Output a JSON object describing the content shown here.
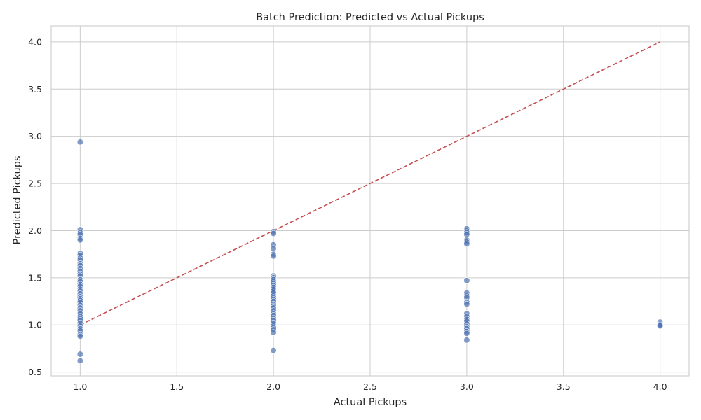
{
  "chart_data": {
    "type": "scatter",
    "title": "Batch Prediction: Predicted vs Actual Pickups",
    "xlabel": "Actual Pickups",
    "ylabel": "Predicted Pickups",
    "xlim": [
      0.85,
      4.15
    ],
    "ylim": [
      0.46,
      4.17
    ],
    "xticks": [
      "1.0",
      "1.5",
      "2.0",
      "2.5",
      "3.0",
      "3.5",
      "4.0"
    ],
    "yticks": [
      "0.5",
      "1.0",
      "1.5",
      "2.0",
      "2.5",
      "3.0",
      "3.5",
      "4.0"
    ],
    "grid": true,
    "colors": {
      "points": "#4c72b0",
      "reference_line": "#c44e52"
    },
    "reference_line": {
      "x": [
        1.0,
        4.0
      ],
      "y": [
        1.0,
        4.0
      ],
      "style": "dashed"
    },
    "points": [
      {
        "x": 1,
        "y": 2.94
      },
      {
        "x": 1,
        "y": 2.01
      },
      {
        "x": 1,
        "y": 1.98
      },
      {
        "x": 1,
        "y": 1.96
      },
      {
        "x": 1,
        "y": 1.92
      },
      {
        "x": 1,
        "y": 1.9
      },
      {
        "x": 1,
        "y": 1.76
      },
      {
        "x": 1,
        "y": 1.74
      },
      {
        "x": 1,
        "y": 1.71
      },
      {
        "x": 1,
        "y": 1.69
      },
      {
        "x": 1,
        "y": 1.65
      },
      {
        "x": 1,
        "y": 1.63
      },
      {
        "x": 1,
        "y": 1.6
      },
      {
        "x": 1,
        "y": 1.57
      },
      {
        "x": 1,
        "y": 1.54
      },
      {
        "x": 1,
        "y": 1.52
      },
      {
        "x": 1,
        "y": 1.48
      },
      {
        "x": 1,
        "y": 1.46
      },
      {
        "x": 1,
        "y": 1.43
      },
      {
        "x": 1,
        "y": 1.41
      },
      {
        "x": 1,
        "y": 1.38
      },
      {
        "x": 1,
        "y": 1.36
      },
      {
        "x": 1,
        "y": 1.33
      },
      {
        "x": 1,
        "y": 1.3
      },
      {
        "x": 1,
        "y": 1.28
      },
      {
        "x": 1,
        "y": 1.26
      },
      {
        "x": 1,
        "y": 1.24
      },
      {
        "x": 1,
        "y": 1.21
      },
      {
        "x": 1,
        "y": 1.18
      },
      {
        "x": 1,
        "y": 1.15
      },
      {
        "x": 1,
        "y": 1.12
      },
      {
        "x": 1,
        "y": 1.09
      },
      {
        "x": 1,
        "y": 1.07
      },
      {
        "x": 1,
        "y": 1.05
      },
      {
        "x": 1,
        "y": 1.02
      },
      {
        "x": 1,
        "y": 0.99
      },
      {
        "x": 1,
        "y": 0.96
      },
      {
        "x": 1,
        "y": 0.94
      },
      {
        "x": 1,
        "y": 0.9
      },
      {
        "x": 1,
        "y": 0.88
      },
      {
        "x": 1,
        "y": 0.69
      },
      {
        "x": 1,
        "y": 0.62
      },
      {
        "x": 2,
        "y": 1.99
      },
      {
        "x": 2,
        "y": 1.97
      },
      {
        "x": 2,
        "y": 1.85
      },
      {
        "x": 2,
        "y": 1.81
      },
      {
        "x": 2,
        "y": 1.75
      },
      {
        "x": 2,
        "y": 1.73
      },
      {
        "x": 2,
        "y": 1.52
      },
      {
        "x": 2,
        "y": 1.5
      },
      {
        "x": 2,
        "y": 1.48
      },
      {
        "x": 2,
        "y": 1.46
      },
      {
        "x": 2,
        "y": 1.44
      },
      {
        "x": 2,
        "y": 1.42
      },
      {
        "x": 2,
        "y": 1.4
      },
      {
        "x": 2,
        "y": 1.38
      },
      {
        "x": 2,
        "y": 1.36
      },
      {
        "x": 2,
        "y": 1.34
      },
      {
        "x": 2,
        "y": 1.31
      },
      {
        "x": 2,
        "y": 1.29
      },
      {
        "x": 2,
        "y": 1.27
      },
      {
        "x": 2,
        "y": 1.25
      },
      {
        "x": 2,
        "y": 1.22
      },
      {
        "x": 2,
        "y": 1.2
      },
      {
        "x": 2,
        "y": 1.18
      },
      {
        "x": 2,
        "y": 1.15
      },
      {
        "x": 2,
        "y": 1.12
      },
      {
        "x": 2,
        "y": 1.1
      },
      {
        "x": 2,
        "y": 1.07
      },
      {
        "x": 2,
        "y": 1.05
      },
      {
        "x": 2,
        "y": 1.02
      },
      {
        "x": 2,
        "y": 0.99
      },
      {
        "x": 2,
        "y": 0.97
      },
      {
        "x": 2,
        "y": 0.95
      },
      {
        "x": 2,
        "y": 0.92
      },
      {
        "x": 2,
        "y": 0.73
      },
      {
        "x": 3,
        "y": 2.02
      },
      {
        "x": 3,
        "y": 2.0
      },
      {
        "x": 3,
        "y": 1.98
      },
      {
        "x": 3,
        "y": 1.96
      },
      {
        "x": 3,
        "y": 1.9
      },
      {
        "x": 3,
        "y": 1.88
      },
      {
        "x": 3,
        "y": 1.86
      },
      {
        "x": 3,
        "y": 1.47
      },
      {
        "x": 3,
        "y": 1.34
      },
      {
        "x": 3,
        "y": 1.31
      },
      {
        "x": 3,
        "y": 1.29
      },
      {
        "x": 3,
        "y": 1.24
      },
      {
        "x": 3,
        "y": 1.22
      },
      {
        "x": 3,
        "y": 1.12
      },
      {
        "x": 3,
        "y": 1.09
      },
      {
        "x": 3,
        "y": 1.06
      },
      {
        "x": 3,
        "y": 1.04
      },
      {
        "x": 3,
        "y": 1.01
      },
      {
        "x": 3,
        "y": 0.98
      },
      {
        "x": 3,
        "y": 0.96
      },
      {
        "x": 3,
        "y": 0.93
      },
      {
        "x": 3,
        "y": 0.91
      },
      {
        "x": 3,
        "y": 0.84
      },
      {
        "x": 4,
        "y": 1.03
      },
      {
        "x": 4,
        "y": 1.01
      },
      {
        "x": 4,
        "y": 1.0
      },
      {
        "x": 4,
        "y": 0.99
      }
    ]
  }
}
